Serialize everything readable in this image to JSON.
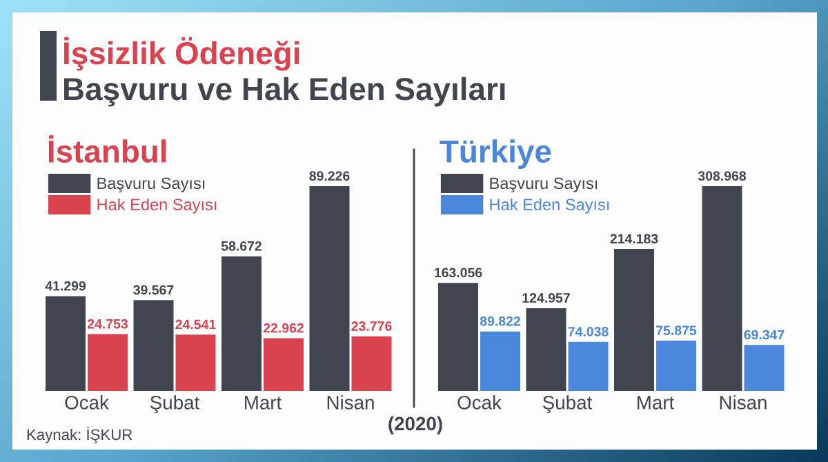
{
  "chart_data": [
    {
      "type": "bar",
      "title": "İstanbul",
      "categories": [
        "Ocak",
        "Şubat",
        "Mart",
        "Nisan"
      ],
      "series": [
        {
          "name": "Başvuru Sayısı",
          "color": "#40454f",
          "values": [
            41299,
            39567,
            58672,
            89226
          ],
          "value_labels": [
            "41.299",
            "39.567",
            "58.672",
            "89.226"
          ]
        },
        {
          "name": "Hak Eden Sayısı",
          "color": "#d9424f",
          "values": [
            24753,
            24541,
            22962,
            23776
          ],
          "value_labels": [
            "24.753",
            "24.541",
            "22.962",
            "23.776"
          ]
        }
      ],
      "legend": "top left",
      "tick_labels": "x",
      "annotations": [
        "İşsizlik Ödeneği",
        "Başvuru ve Hak Eden Sayıları",
        "(2020)",
        "Kaynak: İŞKUR"
      ]
    },
    {
      "type": "bar",
      "title": "Türkiye",
      "categories": [
        "Ocak",
        "Şubat",
        "Mart",
        "Nisan"
      ],
      "series": [
        {
          "name": "Başvuru Sayısı",
          "color": "#40454f",
          "values": [
            163056,
            124957,
            214183,
            308968
          ],
          "value_labels": [
            "163.056",
            "124.957",
            "214.183",
            "308.968"
          ]
        },
        {
          "name": "Hak Eden Sayısı",
          "color": "#4a87db",
          "values": [
            89822,
            74038,
            75875,
            69347
          ],
          "value_labels": [
            "89.822",
            "74.038",
            "75.875",
            "69.347"
          ]
        }
      ],
      "legend": "top left",
      "tick_labels": "x"
    }
  ]
}
